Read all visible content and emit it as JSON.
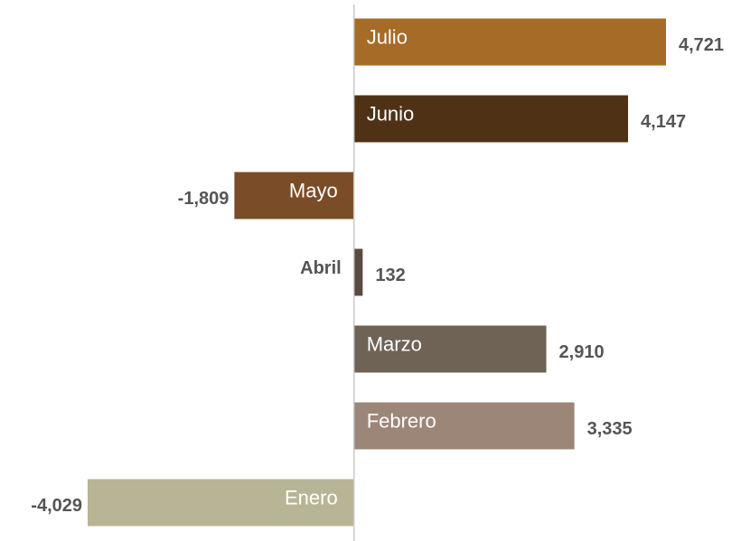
{
  "chart_data": {
    "type": "bar",
    "orientation": "horizontal",
    "categories": [
      "Julio",
      "Junio",
      "Mayo",
      "Abril",
      "Marzo",
      "Febrero",
      "Enero"
    ],
    "values": [
      4721,
      4147,
      -1809,
      132,
      2910,
      3335,
      -4029
    ],
    "value_labels": [
      "4,721",
      "4,147",
      "-1,809",
      "132",
      "2,910",
      "3,335",
      "-4,029"
    ],
    "colors": [
      "#a66b26",
      "#4f3216",
      "#7a4d28",
      "#5a4a40",
      "#6e6354",
      "#9c8678",
      "#b8b596"
    ]
  }
}
